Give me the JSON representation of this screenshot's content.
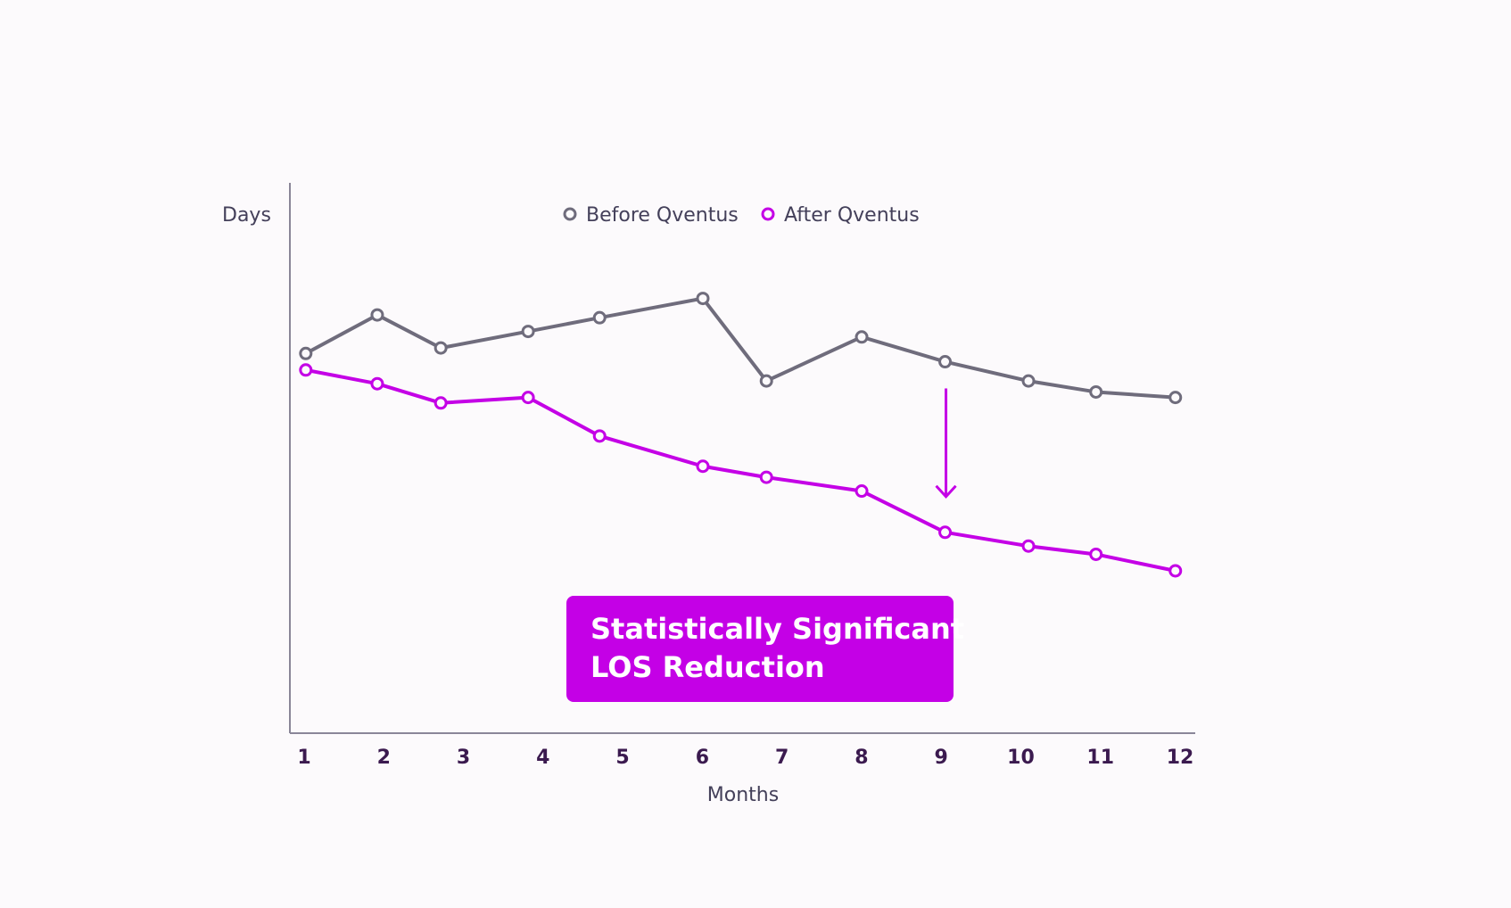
{
  "chart_data": {
    "type": "line",
    "title": "",
    "xlabel": "Months",
    "ylabel": "Days",
    "categories": [
      "1",
      "2",
      "3",
      "4",
      "5",
      "6",
      "7",
      "8",
      "9",
      "10",
      "11",
      "12"
    ],
    "x": [
      1,
      1.9,
      2.7,
      3.8,
      4.7,
      6.0,
      6.8,
      8.0,
      9.05,
      10.1,
      10.95,
      11.95
    ],
    "series": [
      {
        "name": "Before Qventus",
        "color": "#6f6c7c",
        "values": [
          6.9,
          7.6,
          7.0,
          7.3,
          7.55,
          7.9,
          6.4,
          7.2,
          6.75,
          6.4,
          6.2,
          6.1
        ]
      },
      {
        "name": "After Qventus",
        "color": "#c400e6",
        "values": [
          6.6,
          6.35,
          6.0,
          6.1,
          5.4,
          4.85,
          4.65,
          4.4,
          3.65,
          3.4,
          3.25,
          2.95
        ]
      }
    ],
    "ylim": [
      0,
      10
    ],
    "xlim": [
      0.8,
      12.2
    ],
    "grid": false,
    "legend_position": "top-center",
    "y_tick_labels_shown": false,
    "annotation": {
      "text_lines": [
        "Statistically Significant",
        "LOS Reduction"
      ],
      "fill": "#c400e6",
      "arrow_month": 9
    }
  }
}
